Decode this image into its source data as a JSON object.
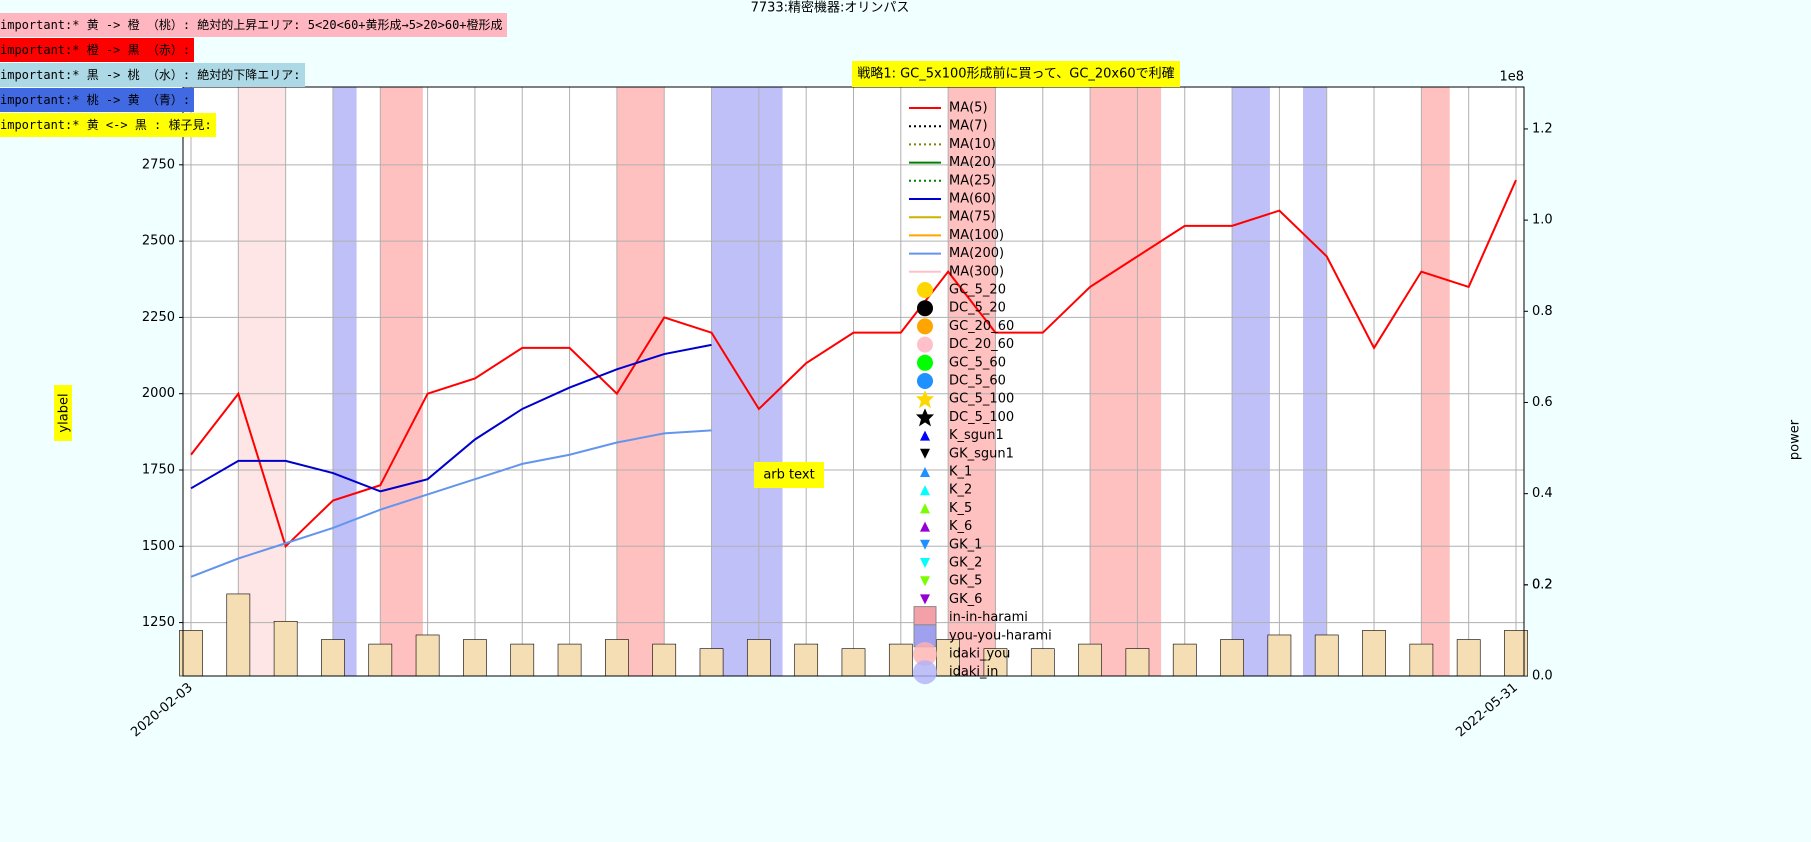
{
  "chart_data": {
    "type": "line",
    "title": "7733:精密機器:オリンパス",
    "annotations": [
      {
        "text": "important:* 黄 -> 橙 （桃）: 絶対的上昇エリア: 5<20<60+黄形成→5>20>60+橙形成",
        "color": "#ffb6c1"
      },
      {
        "text": "important:* 橙 -> 黒 （赤）:",
        "color": "#ff0000"
      },
      {
        "text": "important:* 黒 -> 桃 （水）: 絶対的下降エリア:",
        "color": "#add8e6"
      },
      {
        "text": "important:* 桃 -> 黄 （青）:",
        "color": "#4169e1"
      },
      {
        "text": "important:* 黄 <-> 黒 : 様子見:",
        "color": "#ffff00"
      }
    ],
    "strategy": "戦略1: GC_5x100形成前に買って、GC_20x60で利確",
    "note": "arb text",
    "ylabel": "ylabel",
    "y2label": "power",
    "y2_offset": "1e8",
    "categories": [
      "2020-02-03",
      null,
      null,
      null,
      null,
      null,
      null,
      null,
      null,
      null,
      null,
      null,
      null,
      null,
      null,
      null,
      null,
      null,
      null,
      null,
      null,
      null,
      null,
      null,
      null,
      null,
      null,
      null,
      "2022-05-31"
    ],
    "series": [
      {
        "color": "#ff0000",
        "values": [
          1800,
          2000,
          1500,
          1650,
          1700,
          2000,
          2050,
          2150,
          2150,
          2000,
          2250,
          2200,
          1950,
          2100,
          2200,
          2200,
          2400,
          2200,
          2200,
          2350,
          2450,
          2550,
          2550,
          2600,
          2450,
          2150,
          2400,
          2350,
          2700
        ]
      },
      {
        "color": "#0000cd",
        "values": [
          1690,
          1780,
          1780,
          1740,
          1680,
          1720,
          1850,
          1950,
          2020,
          2080,
          2130,
          2160,
          null,
          null,
          null,
          null,
          null,
          null,
          null,
          null,
          null,
          null,
          null,
          null,
          null,
          null,
          null,
          null,
          null
        ]
      },
      {
        "color": "#6495ed",
        "values": [
          1400,
          1460,
          1510,
          1560,
          1620,
          1670,
          1720,
          1770,
          1800,
          1840,
          1870,
          1880,
          null,
          null,
          null,
          null,
          null,
          null,
          null,
          null,
          null,
          null,
          null,
          null,
          null,
          null,
          null,
          null,
          null
        ]
      },
      {
        "color": "#000000",
        "axis": "y2",
        "kind": "bar",
        "values": [
          0.1,
          0.18,
          0.12,
          0.08,
          0.07,
          0.09,
          0.08,
          0.07,
          0.07,
          0.08,
          0.07,
          0.06,
          0.08,
          0.07,
          0.06,
          0.07,
          0.08,
          0.06,
          0.06,
          0.07,
          0.06,
          0.07,
          0.08,
          0.09,
          0.09,
          0.1,
          0.07,
          0.08,
          0.1
        ]
      }
    ],
    "regions": [
      {
        "from": 1,
        "to": 2,
        "color": "#ffe0e0"
      },
      {
        "from": 3,
        "to": 3.5,
        "color": "#b0b0f8"
      },
      {
        "from": 4,
        "to": 4.9,
        "color": "#ffb0b0"
      },
      {
        "from": 9,
        "to": 10,
        "color": "#ffb0b0"
      },
      {
        "from": 11,
        "to": 12.5,
        "color": "#b0b0f8"
      },
      {
        "from": 16,
        "to": 17,
        "color": "#ffb0b0"
      },
      {
        "from": 19,
        "to": 20.5,
        "color": "#ffb0b0"
      },
      {
        "from": 22,
        "to": 22.8,
        "color": "#b0b0f8"
      },
      {
        "from": 23.5,
        "to": 24,
        "color": "#b0b0f8"
      },
      {
        "from": 26,
        "to": 26.6,
        "color": "#ffb0b0"
      }
    ],
    "ylim": [
      1075,
      3005
    ],
    "yticks": [
      1250,
      1500,
      1750,
      2000,
      2250,
      2500,
      2750
    ],
    "y2lim": [
      0,
      1.292
    ],
    "y2ticks": [
      {
        "value": 0,
        "label": "0.0"
      },
      0.2,
      0.4,
      0.6,
      0.8,
      {
        "value": 1,
        "label": "1.0"
      },
      0.2,
      1.2
    ],
    "grid": true,
    "legend": [
      {
        "label": "MA(5)",
        "color": "#ff0000",
        "marker": "line"
      },
      {
        "label": "MA(7)",
        "color": "#000000",
        "marker": "dot"
      },
      {
        "label": "MA(10)",
        "color": "#808000",
        "marker": "dot"
      },
      {
        "label": "MA(20)",
        "color": "#008000",
        "marker": "line"
      },
      {
        "label": "MA(25)",
        "color": "#008000",
        "marker": "dot"
      },
      {
        "label": "MA(60)",
        "color": "#0000cd",
        "marker": "line"
      },
      {
        "label": "MA(75)",
        "color": "#c8b400",
        "marker": "line"
      },
      {
        "label": "MA(100)",
        "color": "#ffa500",
        "marker": "line"
      },
      {
        "label": "MA(200)",
        "color": "#6495ed",
        "marker": "line"
      },
      {
        "label": "MA(300)",
        "color": "#ffc0cb",
        "marker": "line"
      },
      {
        "label": "GC_5_20",
        "color": "#ffd700",
        "marker": "circle"
      },
      {
        "label": "DC_5_20",
        "color": "#000000",
        "marker": "circle"
      },
      {
        "label": "GC_20_60",
        "color": "#ffa500",
        "marker": "circle"
      },
      {
        "label": "DC_20_60",
        "color": "#ffc0cb",
        "marker": "circle"
      },
      {
        "label": "GC_5_60",
        "color": "#00ff00",
        "marker": "circle"
      },
      {
        "label": "DC_5_60",
        "color": "#1e90ff",
        "marker": "circle"
      },
      {
        "label": "GC_5_100",
        "color": "#ffd700",
        "marker": "star"
      },
      {
        "label": "DC_5_100",
        "color": "#000000",
        "marker": "star"
      },
      {
        "label": "K_sgun1",
        "color": "#0000ff",
        "marker": "up"
      },
      {
        "label": "GK_sgun1",
        "color": "#000000",
        "marker": "down"
      },
      {
        "label": "K_1",
        "color": "#1e90ff",
        "marker": "up"
      },
      {
        "label": "K_2",
        "color": "#00ffff",
        "marker": "up"
      },
      {
        "label": "K_5",
        "color": "#7cfc00",
        "marker": "up"
      },
      {
        "label": "K_6",
        "color": "#9400d3",
        "marker": "up"
      },
      {
        "label": "GK_1",
        "color": "#1e90ff",
        "marker": "down"
      },
      {
        "label": "GK_2",
        "color": "#00ffff",
        "marker": "down"
      },
      {
        "label": "GK_5",
        "color": "#7cfc00",
        "marker": "down"
      },
      {
        "label": "GK_6",
        "color": "#9400d3",
        "marker": "down"
      },
      {
        "label": "in-in-harami",
        "color": "#f4a0a8",
        "marker": "square"
      },
      {
        "label": "you-you-harami",
        "color": "#a0a0f0",
        "marker": "square"
      },
      {
        "label": "idaki_you",
        "color": "#ffb0b0",
        "marker": "bigcircle"
      },
      {
        "label": "idaki_in",
        "color": "#b0b0f8",
        "marker": "bigcircle"
      }
    ]
  }
}
